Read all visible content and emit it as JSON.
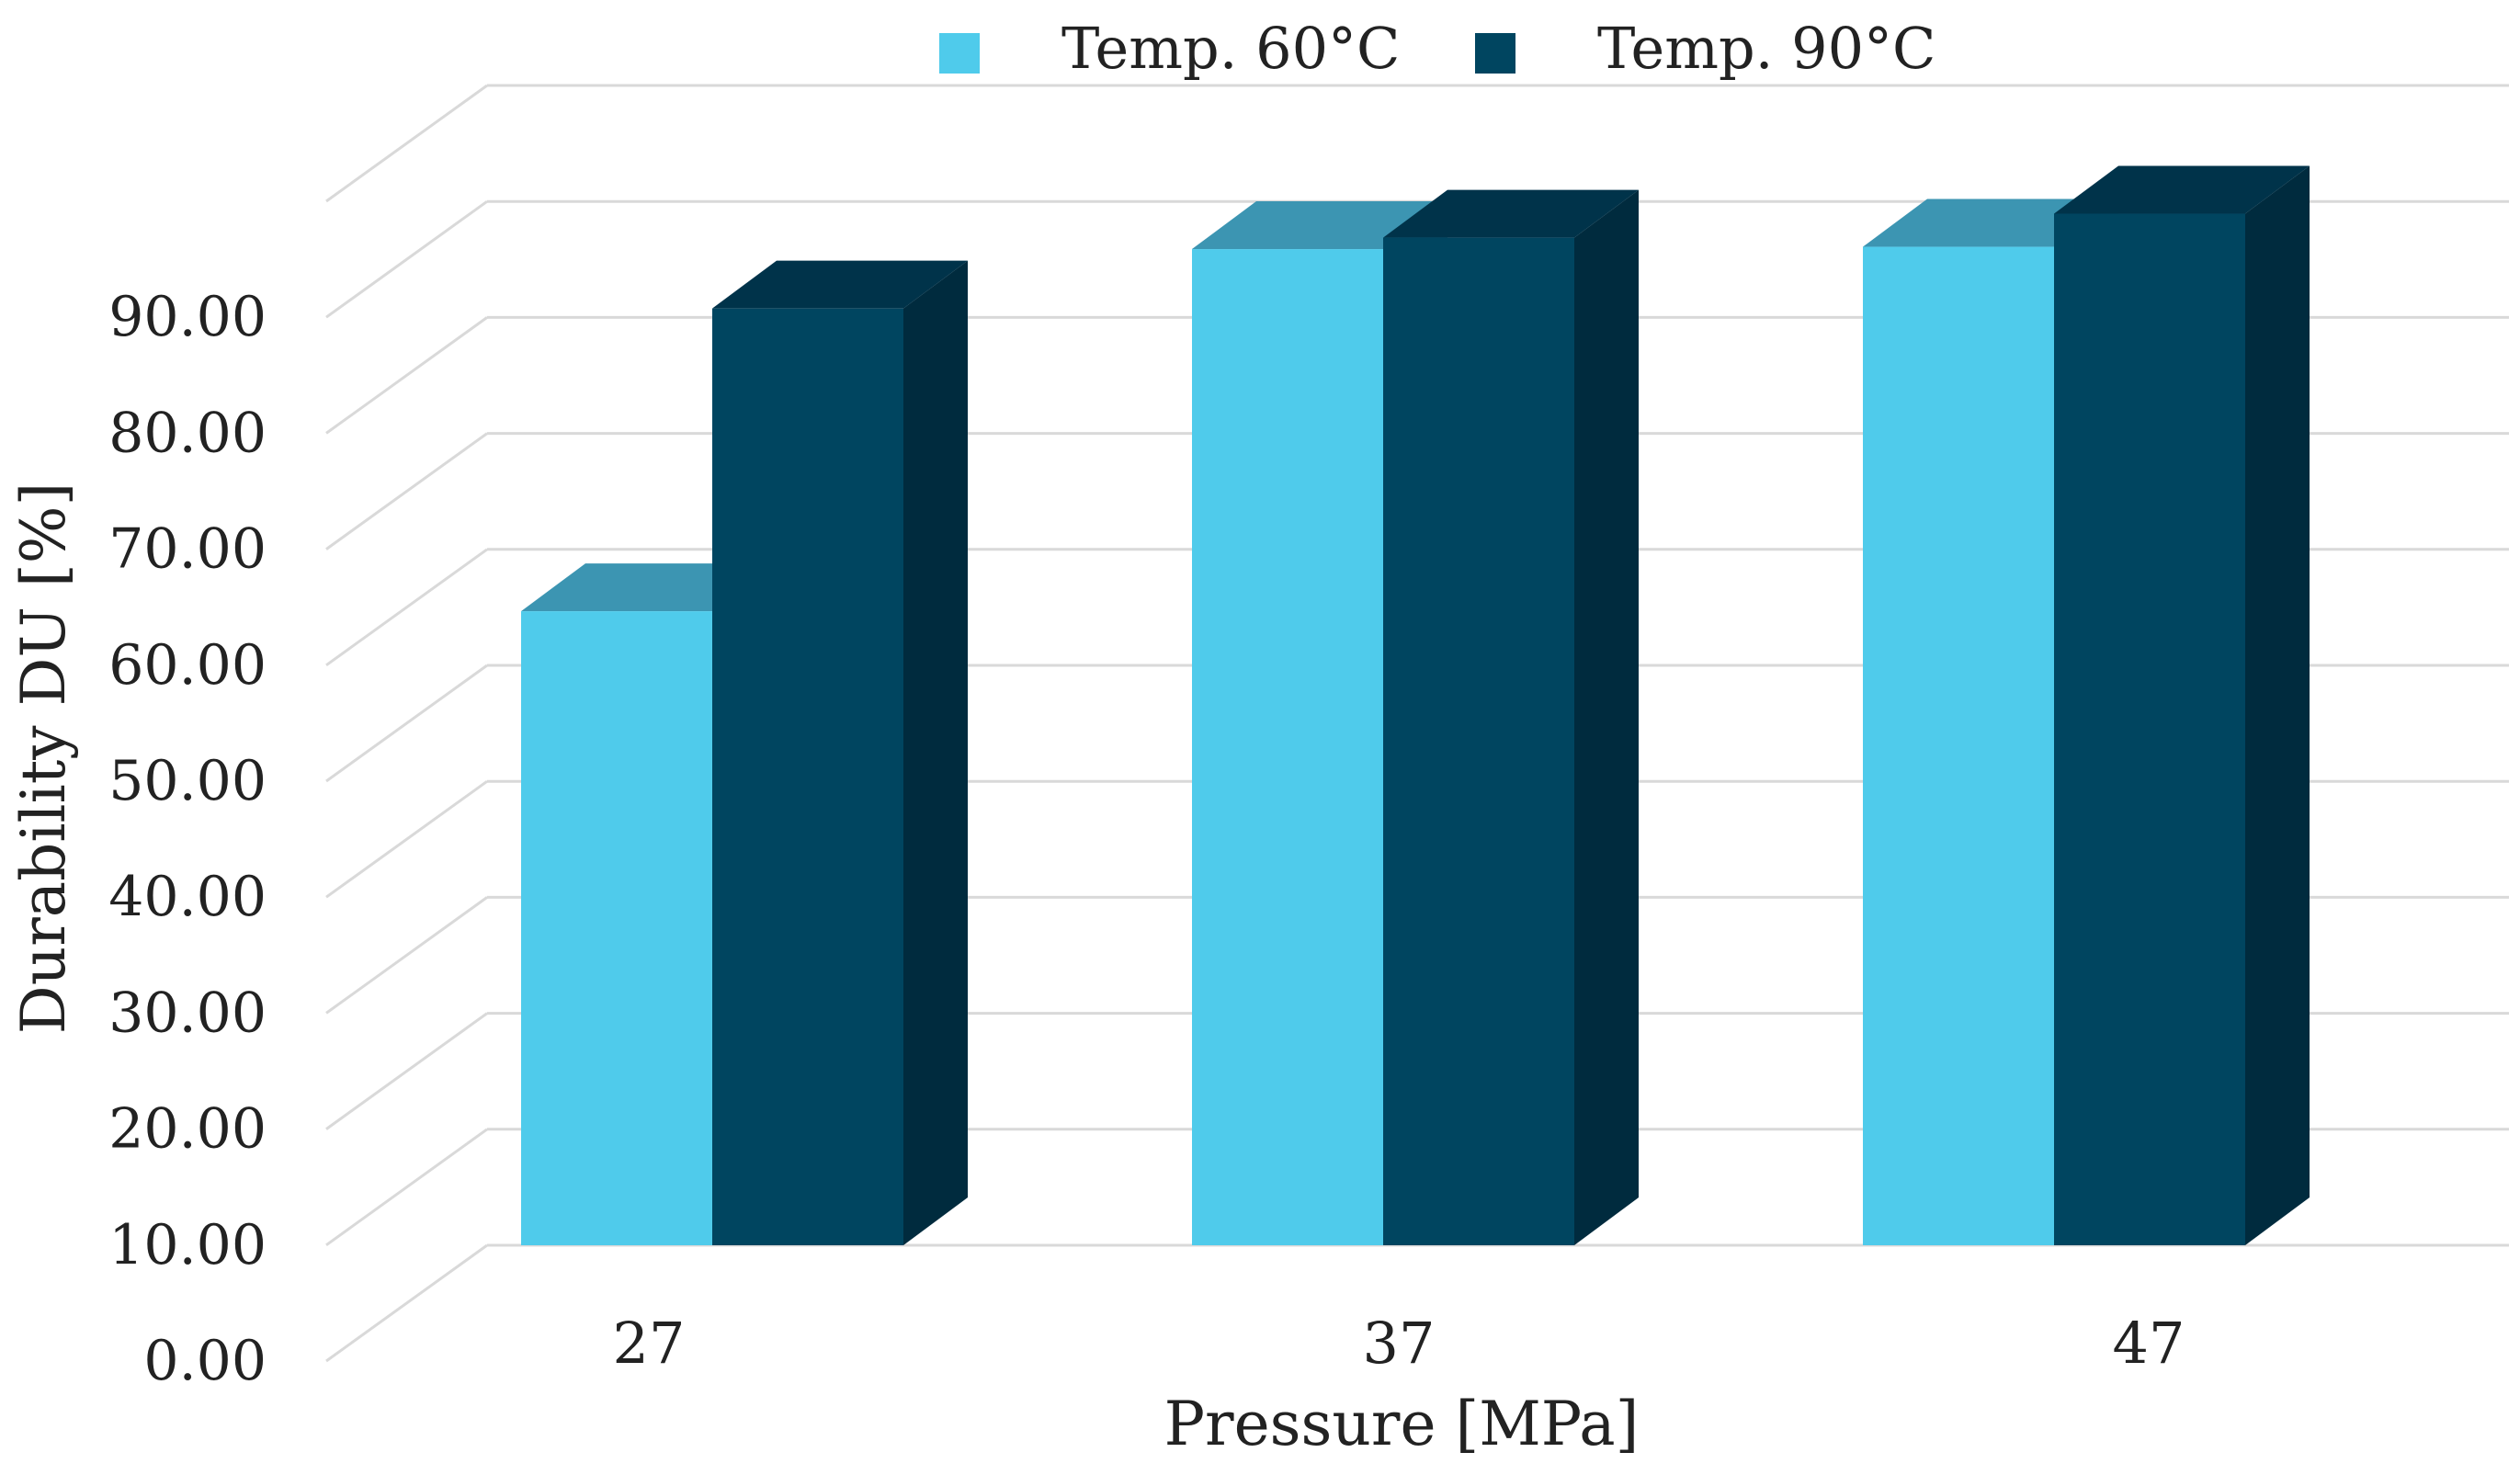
{
  "chart_data": {
    "type": "bar",
    "style": "3d-clustered-column",
    "categories": [
      "27",
      "37",
      "47"
    ],
    "series": [
      {
        "name": "Temp. 60°C",
        "values": [
          55.5,
          87.2,
          87.4
        ],
        "color": "#4FCBEB",
        "top_color": "#3C95B2",
        "side_color": "#3A9ABA"
      },
      {
        "name": "Temp. 90°C",
        "values": [
          82.0,
          88.2,
          90.3
        ],
        "color": "#004560",
        "top_color": "#00334A",
        "side_color": "#002B3E"
      }
    ],
    "title": "",
    "xlabel": "Pressure [MPa]",
    "ylabel": "Durability DU [%]",
    "ylim": [
      0,
      100
    ],
    "yticks": [
      0,
      10,
      20,
      30,
      40,
      50,
      60,
      70,
      80,
      90
    ],
    "ytick_labels": [
      "0.00",
      "10.00",
      "20.00",
      "30.00",
      "40.00",
      "50.00",
      "60.00",
      "70.00",
      "80.00",
      "90.00"
    ],
    "grid": true,
    "legend_position": "top-center",
    "grid_color": "#D9D9D9"
  }
}
